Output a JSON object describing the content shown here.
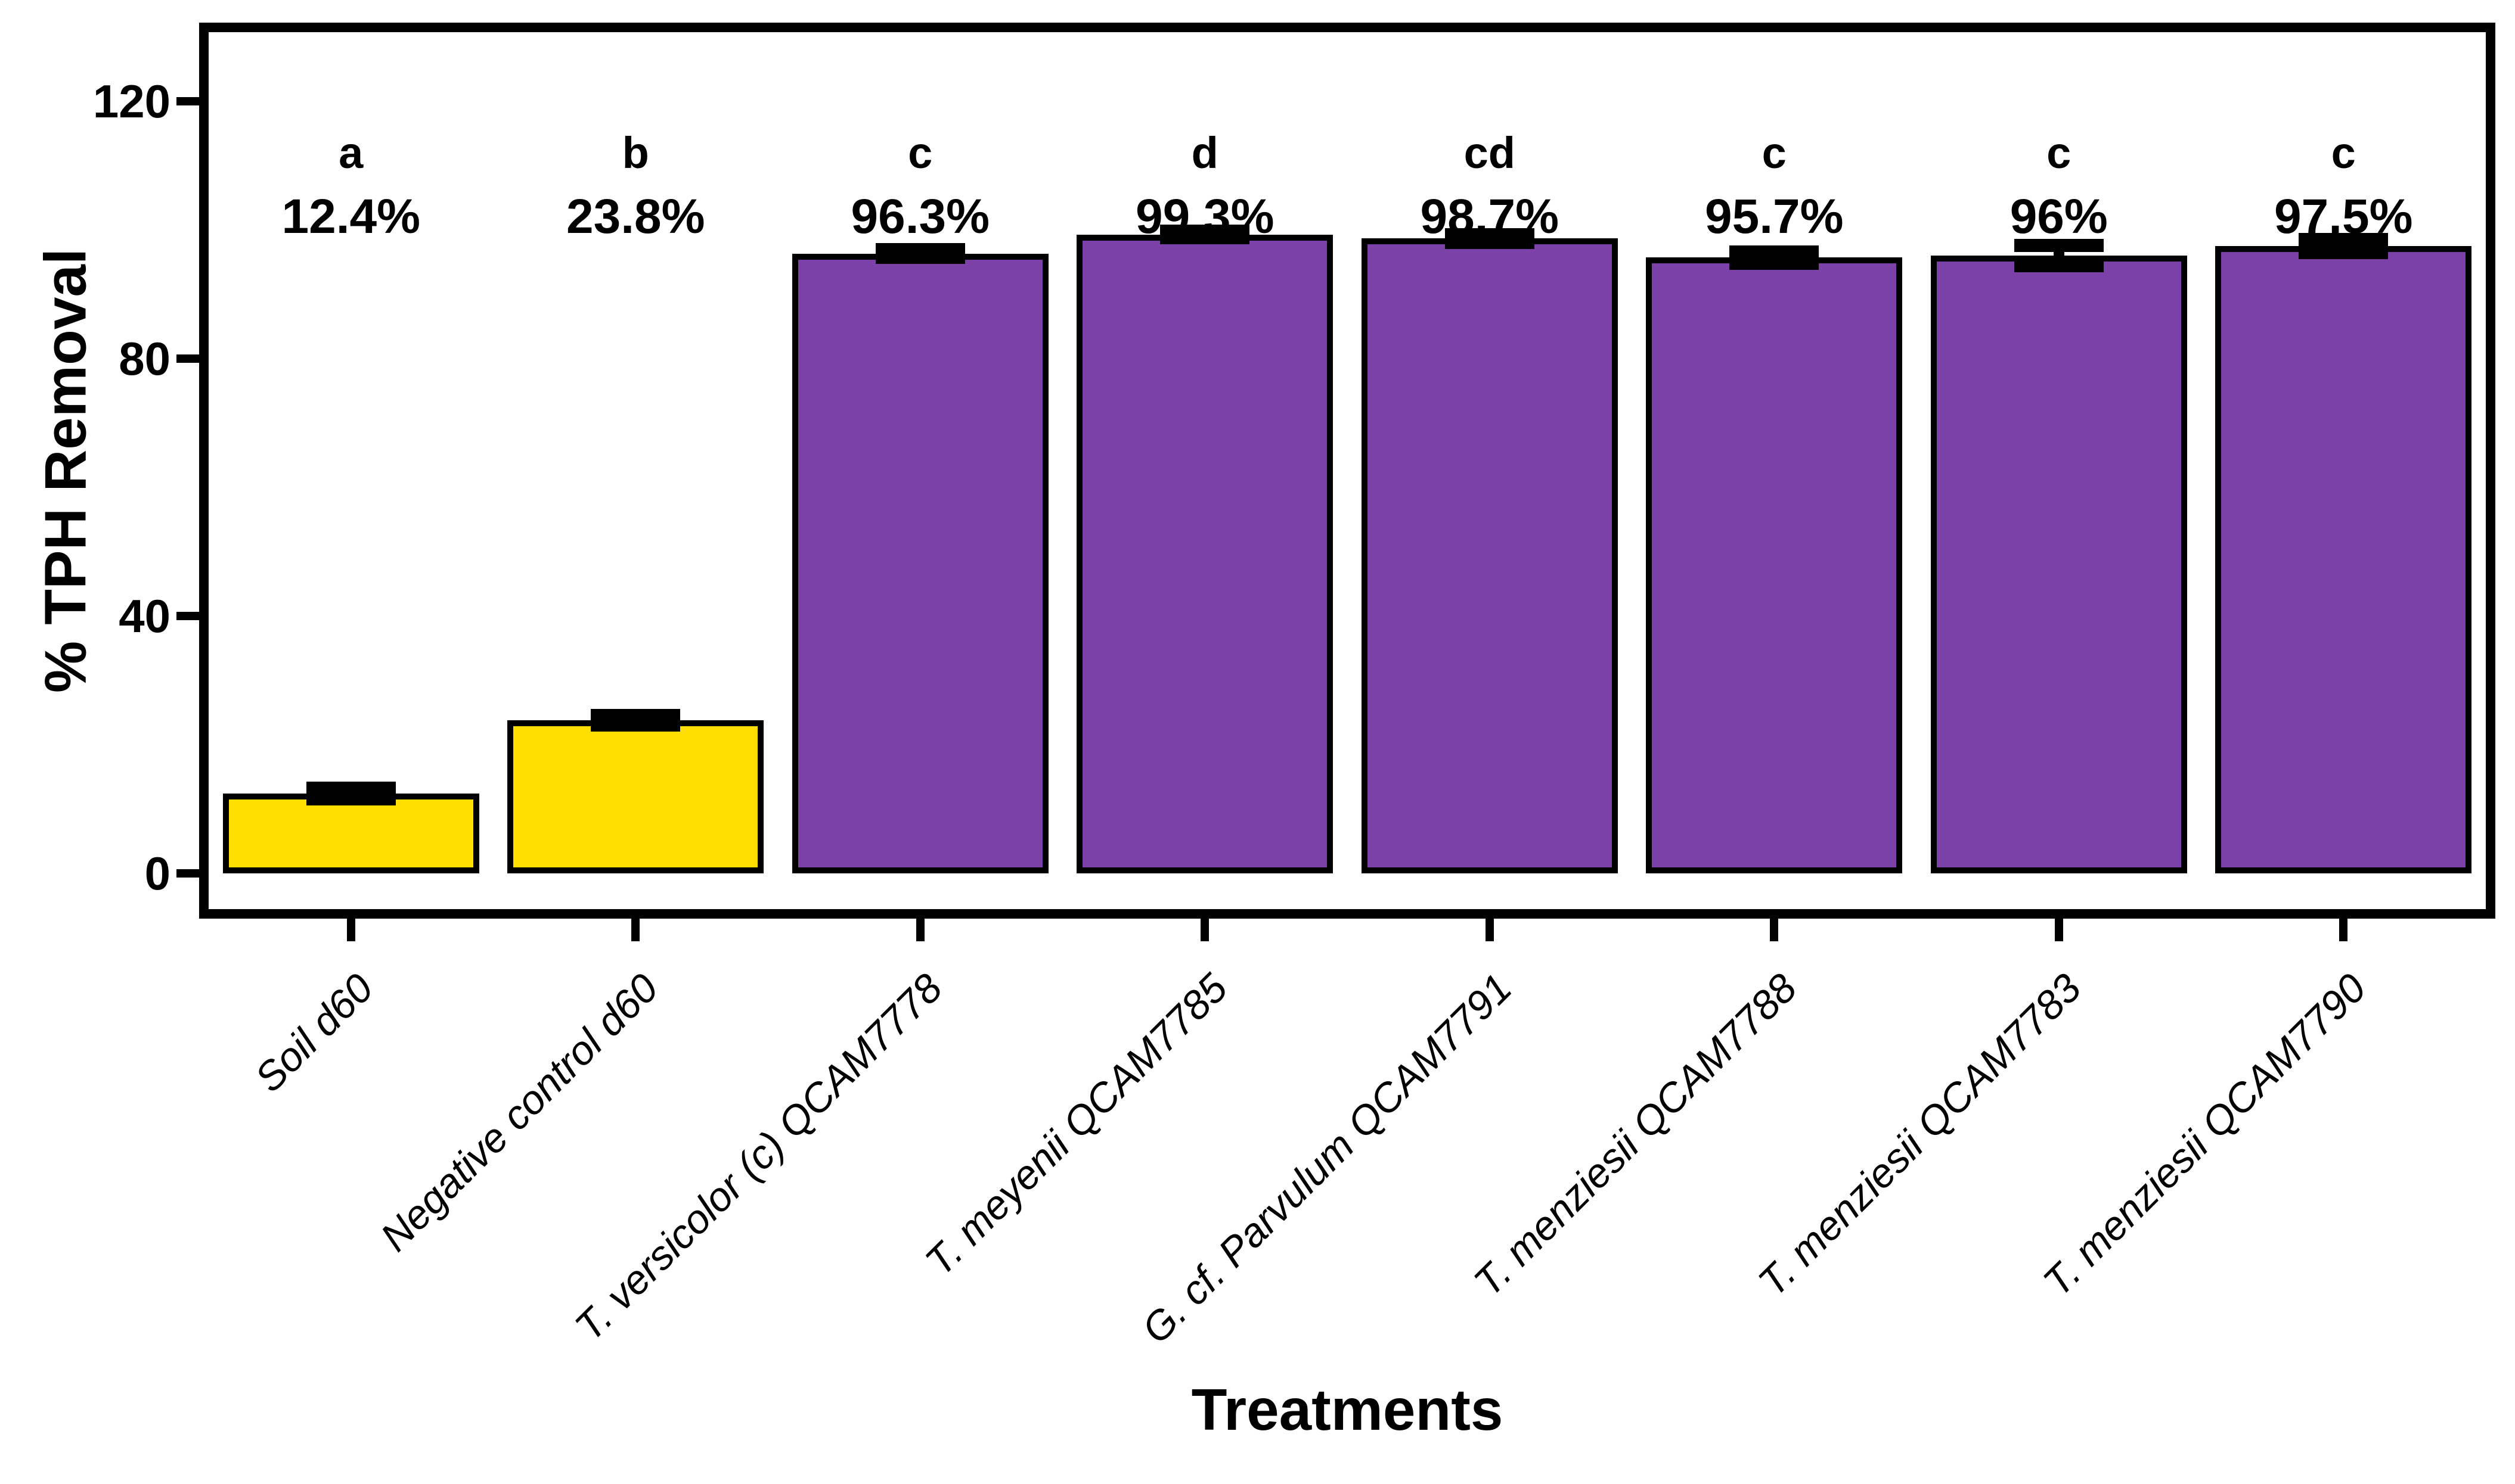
{
  "chart_data": {
    "type": "bar",
    "title": "",
    "xlabel": "Treatments",
    "ylabel": "% TPH Removal",
    "categories": [
      "Soil d60",
      "Negative control d60",
      "T. versicolor (c) QCAM7778",
      "T. meyenii QCAM7785",
      "G. cf. Parvulum QCAM7791",
      "T. menziesii QCAM7788",
      "T. menziesii QCAM7783",
      "T. menziesii QCAM7790"
    ],
    "values": [
      12.4,
      23.8,
      96.3,
      99.3,
      98.7,
      95.7,
      96,
      97.5
    ],
    "value_labels": [
      "12.4%",
      "23.8%",
      "96.3%",
      "99.3%",
      "98.7%",
      "95.7%",
      "96%",
      "97.5%"
    ],
    "sig_letters": [
      "a",
      "b",
      "c",
      "d",
      "cd",
      "c",
      "c",
      "c"
    ],
    "errors": [
      0.8,
      0.7,
      0.6,
      0.5,
      0.6,
      0.9,
      1.6,
      1.0
    ],
    "bar_colors": [
      "#FFDE00",
      "#FFDE00",
      "#7B41A8",
      "#7B41A8",
      "#7B41A8",
      "#7B41A8",
      "#7B41A8",
      "#7B41A8"
    ],
    "yticks": [
      0,
      40,
      80,
      120
    ],
    "ylim": [
      0,
      126
    ],
    "grid": "off",
    "legend": "none",
    "bar_border_color": "#000000",
    "error_bar_color": "#000000",
    "frame_color": "#000000"
  }
}
